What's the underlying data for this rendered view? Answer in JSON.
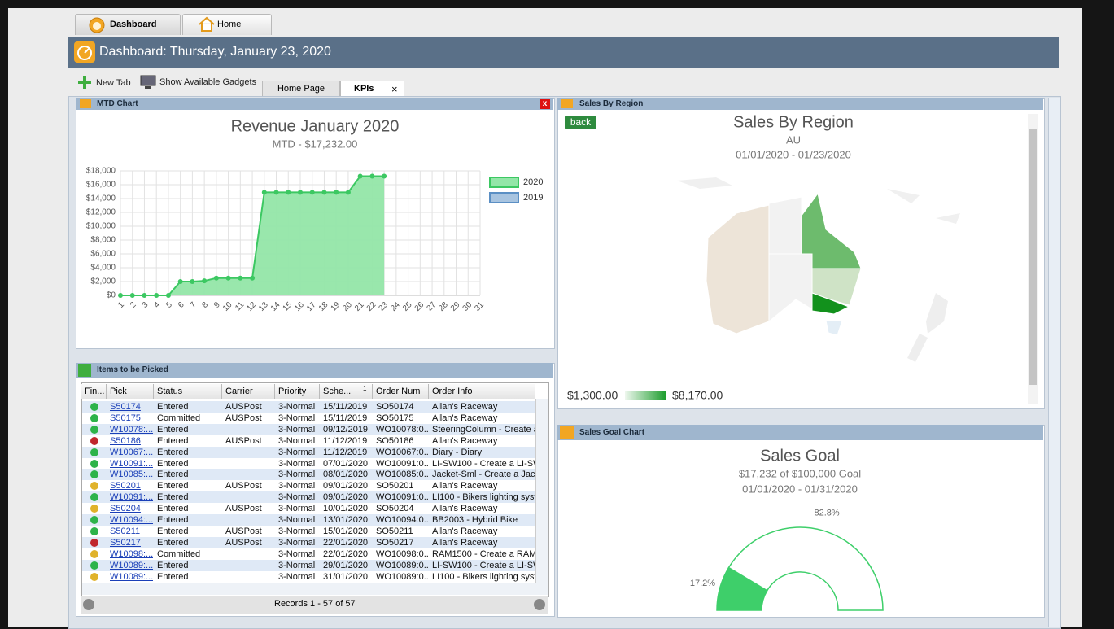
{
  "tabs": [
    "Dashboard",
    "Home"
  ],
  "header": {
    "title": "Dashboard: Thursday, January 23, 2020"
  },
  "toolbar": [
    "New Tab",
    "Show Available Gadgets"
  ],
  "subtabs": [
    "Home Page",
    "KPIs"
  ],
  "subtab_close": "×",
  "panels": {
    "mtd": "MTD Chart",
    "picked": "Items to be Picked",
    "region": "Sales By Region",
    "goal": "Sales Goal Chart"
  },
  "chart_data": [
    {
      "type": "line",
      "title": "Revenue January 2020",
      "subtitle": "MTD - $17,232.00",
      "x": [
        1,
        2,
        3,
        4,
        5,
        6,
        7,
        8,
        9,
        10,
        11,
        12,
        13,
        14,
        15,
        16,
        17,
        18,
        19,
        20,
        21,
        22,
        23,
        24,
        25,
        26,
        27,
        28,
        29,
        30,
        31
      ],
      "xlim": [
        1,
        31
      ],
      "ylim": [
        0,
        18000
      ],
      "yticks": [
        {
          "value": 0,
          "label": "$0"
        },
        {
          "value": 2000,
          "label": "$2,000"
        },
        {
          "value": 4000,
          "label": "$4,000"
        },
        {
          "value": 6000,
          "label": "$6,000"
        },
        {
          "value": 8000,
          "label": "$8,000"
        },
        {
          "value": 10000,
          "label": "$10,000"
        },
        {
          "value": 12000,
          "label": "$12,000"
        },
        {
          "value": 14000,
          "label": "$14,000"
        },
        {
          "value": 16000,
          "label": "$16,000"
        },
        {
          "value": 18000,
          "label": "$18,000"
        }
      ],
      "grid": true,
      "legend": "right",
      "series": [
        {
          "name": "2020",
          "color": "#3cc862",
          "fill": "#93e6a8",
          "values": [
            0,
            0,
            0,
            0,
            0,
            2000,
            2000,
            2100,
            2500,
            2500,
            2500,
            2500,
            14900,
            14900,
            14900,
            14900,
            14900,
            14900,
            14900,
            14900,
            17232,
            17232,
            17232,
            null,
            null,
            null,
            null,
            null,
            null,
            null,
            null
          ]
        },
        {
          "name": "2019",
          "color": "#5b8fc4",
          "fill": "#a8c4e0",
          "values": [
            null,
            null,
            null,
            null,
            null,
            null,
            null,
            null,
            null,
            null,
            null,
            null,
            null,
            null,
            null,
            null,
            null,
            null,
            null,
            null,
            null,
            null,
            null,
            null,
            null,
            null,
            null,
            null,
            null,
            null,
            null
          ]
        }
      ]
    },
    {
      "type": "gauge",
      "title": "Sales Goal",
      "subtitle": "$17,232 of $100,000 Goal",
      "date": "01/01/2020 - 01/31/2020",
      "values": [
        17.2,
        82.8
      ],
      "value_labels": [
        "17.2%",
        "82.8%"
      ],
      "colors": [
        "#3ecf6a",
        "#ffffff"
      ],
      "stroke": "#3ecf6a"
    }
  ],
  "region": {
    "button": "back",
    "title": "Sales By Region",
    "subtitle": "AU",
    "date": "01/01/2020 - 01/23/2020",
    "legend_min": "$1,300.00",
    "legend_max": "$8,170.00"
  },
  "picked": {
    "columns": [
      "Fin...",
      "Pick",
      "Status",
      "Carrier",
      "Priority",
      "Sche...",
      "Order Num",
      "Order Info"
    ],
    "sort_order": "1",
    "rows": [
      {
        "dot": "#2db34a",
        "cells": [
          "S50174",
          "Entered",
          "AUSPost",
          "3-Normal",
          "15/11/2019",
          "SO50174",
          "Allan's Raceway"
        ]
      },
      {
        "dot": "#2db34a",
        "cells": [
          "S50175",
          "Committed",
          "AUSPost",
          "3-Normal",
          "15/11/2019",
          "SO50175",
          "Allan's Raceway"
        ]
      },
      {
        "dot": "#2db34a",
        "cells": [
          "W10078:...",
          "Entered",
          null,
          "3-Normal",
          "09/12/2019",
          "WO10078:0...",
          "SteeringColumn - Create a"
        ]
      },
      {
        "dot": "#c0272d",
        "cells": [
          "S50186",
          "Entered",
          "AUSPost",
          "3-Normal",
          "11/12/2019",
          "SO50186",
          "Allan's Raceway"
        ]
      },
      {
        "dot": "#2db34a",
        "cells": [
          "W10067:...",
          "Entered",
          null,
          "3-Normal",
          "11/12/2019",
          "WO10067:0...",
          "Diary - Diary"
        ]
      },
      {
        "dot": "#2db34a",
        "cells": [
          "W10091:...",
          "Entered",
          null,
          "3-Normal",
          "07/01/2020",
          "WO10091:0...",
          "LI-SW100 - Create a LI-SW"
        ]
      },
      {
        "dot": "#2db34a",
        "cells": [
          "W10085:...",
          "Entered",
          null,
          "3-Normal",
          "08/01/2020",
          "WO10085:0...",
          "Jacket-Sml - Create a Jacke"
        ]
      },
      {
        "dot": "#e0b22b",
        "cells": [
          "S50201",
          "Entered",
          "AUSPost",
          "3-Normal",
          "09/01/2020",
          "SO50201",
          "Allan's Raceway"
        ]
      },
      {
        "dot": "#2db34a",
        "cells": [
          "W10091:...",
          "Entered",
          null,
          "3-Normal",
          "09/01/2020",
          "WO10091:0...",
          "LI100 - Bikers lighting syste"
        ]
      },
      {
        "dot": "#e0b22b",
        "cells": [
          "S50204",
          "Entered",
          "AUSPost",
          "3-Normal",
          "10/01/2020",
          "SO50204",
          "Allan's Raceway"
        ]
      },
      {
        "dot": "#2db34a",
        "cells": [
          "W10094:...",
          "Entered",
          null,
          "3-Normal",
          "13/01/2020",
          "WO10094:0...",
          "BB2003 - Hybrid Bike"
        ]
      },
      {
        "dot": "#2db34a",
        "cells": [
          "S50211",
          "Entered",
          "AUSPost",
          "3-Normal",
          "15/01/2020",
          "SO50211",
          "Allan's Raceway"
        ]
      },
      {
        "dot": "#c0272d",
        "cells": [
          "S50217",
          "Entered",
          "AUSPost",
          "3-Normal",
          "22/01/2020",
          "SO50217",
          "Allan's Raceway"
        ]
      },
      {
        "dot": "#e0b22b",
        "cells": [
          "W10098:...",
          "Committed",
          null,
          "3-Normal",
          "22/01/2020",
          "WO10098:0...",
          "RAM1500 - Create a RAM15"
        ]
      },
      {
        "dot": "#2db34a",
        "cells": [
          "W10089:...",
          "Entered",
          null,
          "3-Normal",
          "29/01/2020",
          "WO10089:0...",
          "LI-SW100 - Create a LI-SW"
        ]
      },
      {
        "dot": "#e0b22b",
        "cells": [
          "W10089:...",
          "Entered",
          null,
          "3-Normal",
          "31/01/2020",
          "WO10089:0...",
          "LI100 - Bikers lighting syste"
        ]
      }
    ],
    "footer": "Records 1 - 57 of 57"
  }
}
